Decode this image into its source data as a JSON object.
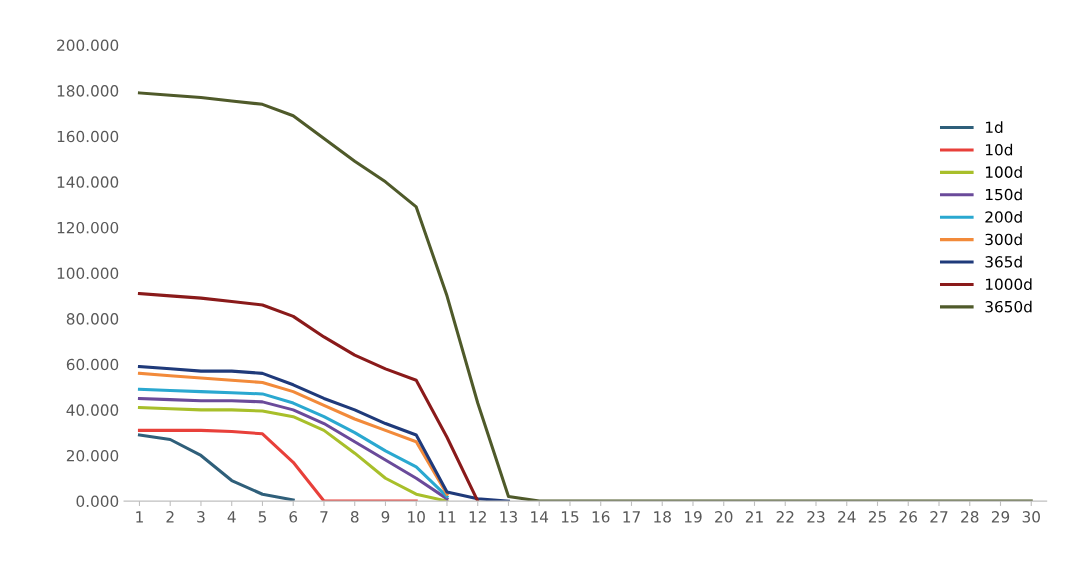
{
  "chart_data": {
    "type": "line",
    "categories": [
      "1",
      "2",
      "3",
      "4",
      "5",
      "6",
      "7",
      "8",
      "9",
      "10",
      "11",
      "12",
      "13",
      "14",
      "15",
      "16",
      "17",
      "18",
      "19",
      "20",
      "21",
      "22",
      "23",
      "24",
      "25",
      "26",
      "27",
      "28",
      "29",
      "30"
    ],
    "series": [
      {
        "name": "1d",
        "color": "#2f5f7a",
        "values": [
          29,
          27,
          20,
          9,
          3,
          0.5,
          null,
          null,
          null,
          null,
          null,
          null,
          null,
          null,
          null,
          null,
          null,
          null,
          null,
          null,
          null,
          null,
          null,
          null,
          null,
          null,
          null,
          null,
          null,
          null
        ]
      },
      {
        "name": "10d",
        "color": "#e8403a",
        "values": [
          31,
          31,
          31,
          30.5,
          29.5,
          17,
          0,
          0,
          0,
          0,
          null,
          null,
          null,
          null,
          null,
          null,
          null,
          null,
          null,
          null,
          null,
          null,
          null,
          null,
          null,
          null,
          null,
          null,
          null,
          null
        ]
      },
      {
        "name": "100d",
        "color": "#a8bf2a",
        "values": [
          41,
          40.5,
          40,
          40,
          39.5,
          37,
          31,
          21,
          10,
          3,
          0,
          null,
          null,
          null,
          null,
          null,
          null,
          null,
          null,
          null,
          null,
          null,
          null,
          null,
          null,
          null,
          null,
          null,
          null,
          null
        ]
      },
      {
        "name": "150d",
        "color": "#6a4a9a",
        "values": [
          45,
          44.5,
          44,
          44,
          43.5,
          40,
          34,
          26,
          18,
          10,
          1,
          null,
          null,
          null,
          null,
          null,
          null,
          null,
          null,
          null,
          null,
          null,
          null,
          null,
          null,
          null,
          null,
          null,
          null,
          null
        ]
      },
      {
        "name": "200d",
        "color": "#2aa8d0",
        "values": [
          49,
          48.5,
          48,
          47.5,
          47,
          43,
          37,
          30,
          22,
          15,
          2,
          null,
          null,
          null,
          null,
          null,
          null,
          null,
          null,
          null,
          null,
          null,
          null,
          null,
          null,
          null,
          null,
          null,
          null,
          null
        ]
      },
      {
        "name": "300d",
        "color": "#f28a3a",
        "values": [
          56,
          55,
          54,
          53,
          52,
          48,
          42,
          36,
          31,
          26,
          3,
          null,
          null,
          null,
          null,
          null,
          null,
          null,
          null,
          null,
          null,
          null,
          null,
          null,
          null,
          null,
          null,
          null,
          null,
          null
        ]
      },
      {
        "name": "365d",
        "color": "#1f3a7a",
        "values": [
          59,
          58,
          57,
          57,
          56,
          51,
          45,
          40,
          34,
          29,
          4,
          1,
          0,
          null,
          null,
          null,
          null,
          null,
          null,
          null,
          null,
          null,
          null,
          null,
          null,
          null,
          null,
          null,
          null,
          null
        ]
      },
      {
        "name": "1000d",
        "color": "#8a1a1a",
        "values": [
          91,
          90,
          89,
          87.5,
          86,
          81,
          72,
          64,
          58,
          53,
          28,
          0,
          null,
          null,
          null,
          null,
          null,
          null,
          null,
          null,
          null,
          null,
          null,
          null,
          null,
          null,
          null,
          null,
          null,
          null
        ]
      },
      {
        "name": "3650d",
        "color": "#4f5a2a",
        "values": [
          179,
          178,
          177,
          175.5,
          174,
          169,
          159,
          149,
          140,
          129,
          90,
          43,
          2,
          0,
          0,
          0,
          0,
          0,
          0,
          0,
          0,
          0,
          0,
          0,
          0,
          0,
          0,
          0,
          0,
          0
        ]
      }
    ],
    "ylim": [
      0,
      200
    ],
    "yticks": [
      {
        "value": 0,
        "label": "0.000"
      },
      {
        "value": 20,
        "label": "20.000"
      },
      {
        "value": 40,
        "label": "40.000"
      },
      {
        "value": 60,
        "label": "60.000"
      },
      {
        "value": 80,
        "label": "80.000"
      },
      {
        "value": 100,
        "label": "100.000"
      },
      {
        "value": 120,
        "label": "120.000"
      },
      {
        "value": 140,
        "label": "140.000"
      },
      {
        "value": 160,
        "label": "160.000"
      },
      {
        "value": 180,
        "label": "180.000"
      },
      {
        "value": 200,
        "label": "200.000"
      }
    ],
    "legend": "right",
    "grid": false,
    "marker": "none",
    "line_style": "solid"
  }
}
